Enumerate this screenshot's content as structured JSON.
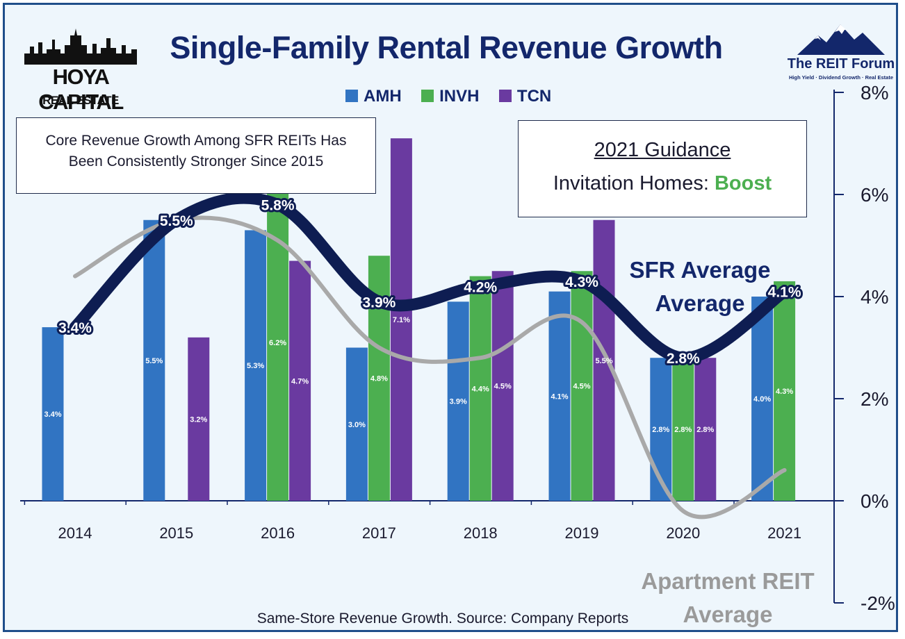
{
  "title": "Single-Family Rental Revenue Growth",
  "logo_left": {
    "line1": "HOYA CAPITAL",
    "line2": "REAL ESTATE"
  },
  "logo_right": {
    "name": "The REIT Forum",
    "tagline": "High Yield · Dividend Growth · Real Estate"
  },
  "annotation_box": {
    "line1": "Core Revenue Growth Among SFR REITs Has",
    "line2": "Been Consistently Stronger Since 2015"
  },
  "guidance_box": {
    "heading": "2021 Guidance",
    "text": "Invitation Homes: ",
    "highlight": "Boost"
  },
  "label_sfr": {
    "line1": "SFR Average",
    "line2": "Average"
  },
  "label_apartment": {
    "line1": "Apartment REIT",
    "line2": "Average"
  },
  "source": "Same-Store Revenue Growth. Source: Company Reports",
  "colors": {
    "amh": "#3174c2",
    "invh": "#4caf50",
    "tcn": "#6a3aa0",
    "sfr_line": "#0e1d52",
    "apartment_line": "#a9a9a9",
    "title": "#13276b"
  },
  "chart_data": {
    "type": "bar",
    "categories": [
      "2014",
      "2015",
      "2016",
      "2017",
      "2018",
      "2019",
      "2020",
      "2021"
    ],
    "series": [
      {
        "name": "AMH",
        "values": [
          3.4,
          5.5,
          5.3,
          3.0,
          3.9,
          4.1,
          2.8,
          4.0
        ],
        "labels": [
          "3.4%",
          "5.5%",
          "5.3%",
          "3.0%",
          "3.9%",
          "4.1%",
          "2.8%",
          "4.0%"
        ]
      },
      {
        "name": "INVH",
        "values": [
          null,
          null,
          6.2,
          4.8,
          4.4,
          4.5,
          2.8,
          4.3
        ],
        "labels": [
          "",
          "",
          "6.2%",
          "4.8%",
          "4.4%",
          "4.5%",
          "2.8%",
          "4.3%"
        ]
      },
      {
        "name": "TCN",
        "values": [
          null,
          3.2,
          4.7,
          7.1,
          4.5,
          5.5,
          2.8,
          null
        ],
        "labels": [
          "",
          "3.2%",
          "4.7%",
          "7.1%",
          "4.5%",
          "5.5%",
          "2.8%",
          ""
        ]
      }
    ],
    "lines": [
      {
        "name": "SFR Average",
        "values": [
          3.4,
          5.5,
          5.8,
          3.9,
          4.2,
          4.3,
          2.8,
          4.1
        ],
        "labels": [
          "3.4%",
          "5.5%",
          "5.8%",
          "3.9%",
          "4.2%",
          "4.3%",
          "2.8%",
          "4.1%"
        ]
      },
      {
        "name": "Apartment REIT Average",
        "values": [
          4.4,
          5.5,
          5.1,
          3.0,
          2.8,
          3.5,
          -0.2,
          0.6
        ]
      }
    ],
    "yaxis": {
      "position": "right",
      "ticks": [
        -2,
        0,
        2,
        4,
        6,
        8
      ],
      "tick_labels": [
        "-2%",
        "0%",
        "2%",
        "4%",
        "6%",
        "8%"
      ],
      "ylim": [
        -2,
        8
      ]
    },
    "legend": "top-center",
    "grid": false
  }
}
